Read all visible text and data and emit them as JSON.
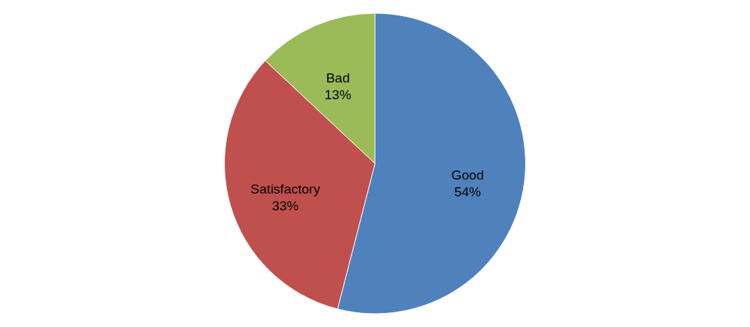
{
  "chart_data": {
    "type": "pie",
    "categories": [
      "Good",
      "Satisfactory",
      "Bad"
    ],
    "values": [
      54,
      33,
      13
    ],
    "value_labels": [
      "54%",
      "33%",
      "13%"
    ],
    "colors": [
      "#4f81bd",
      "#c0504d",
      "#9bbb59"
    ]
  }
}
